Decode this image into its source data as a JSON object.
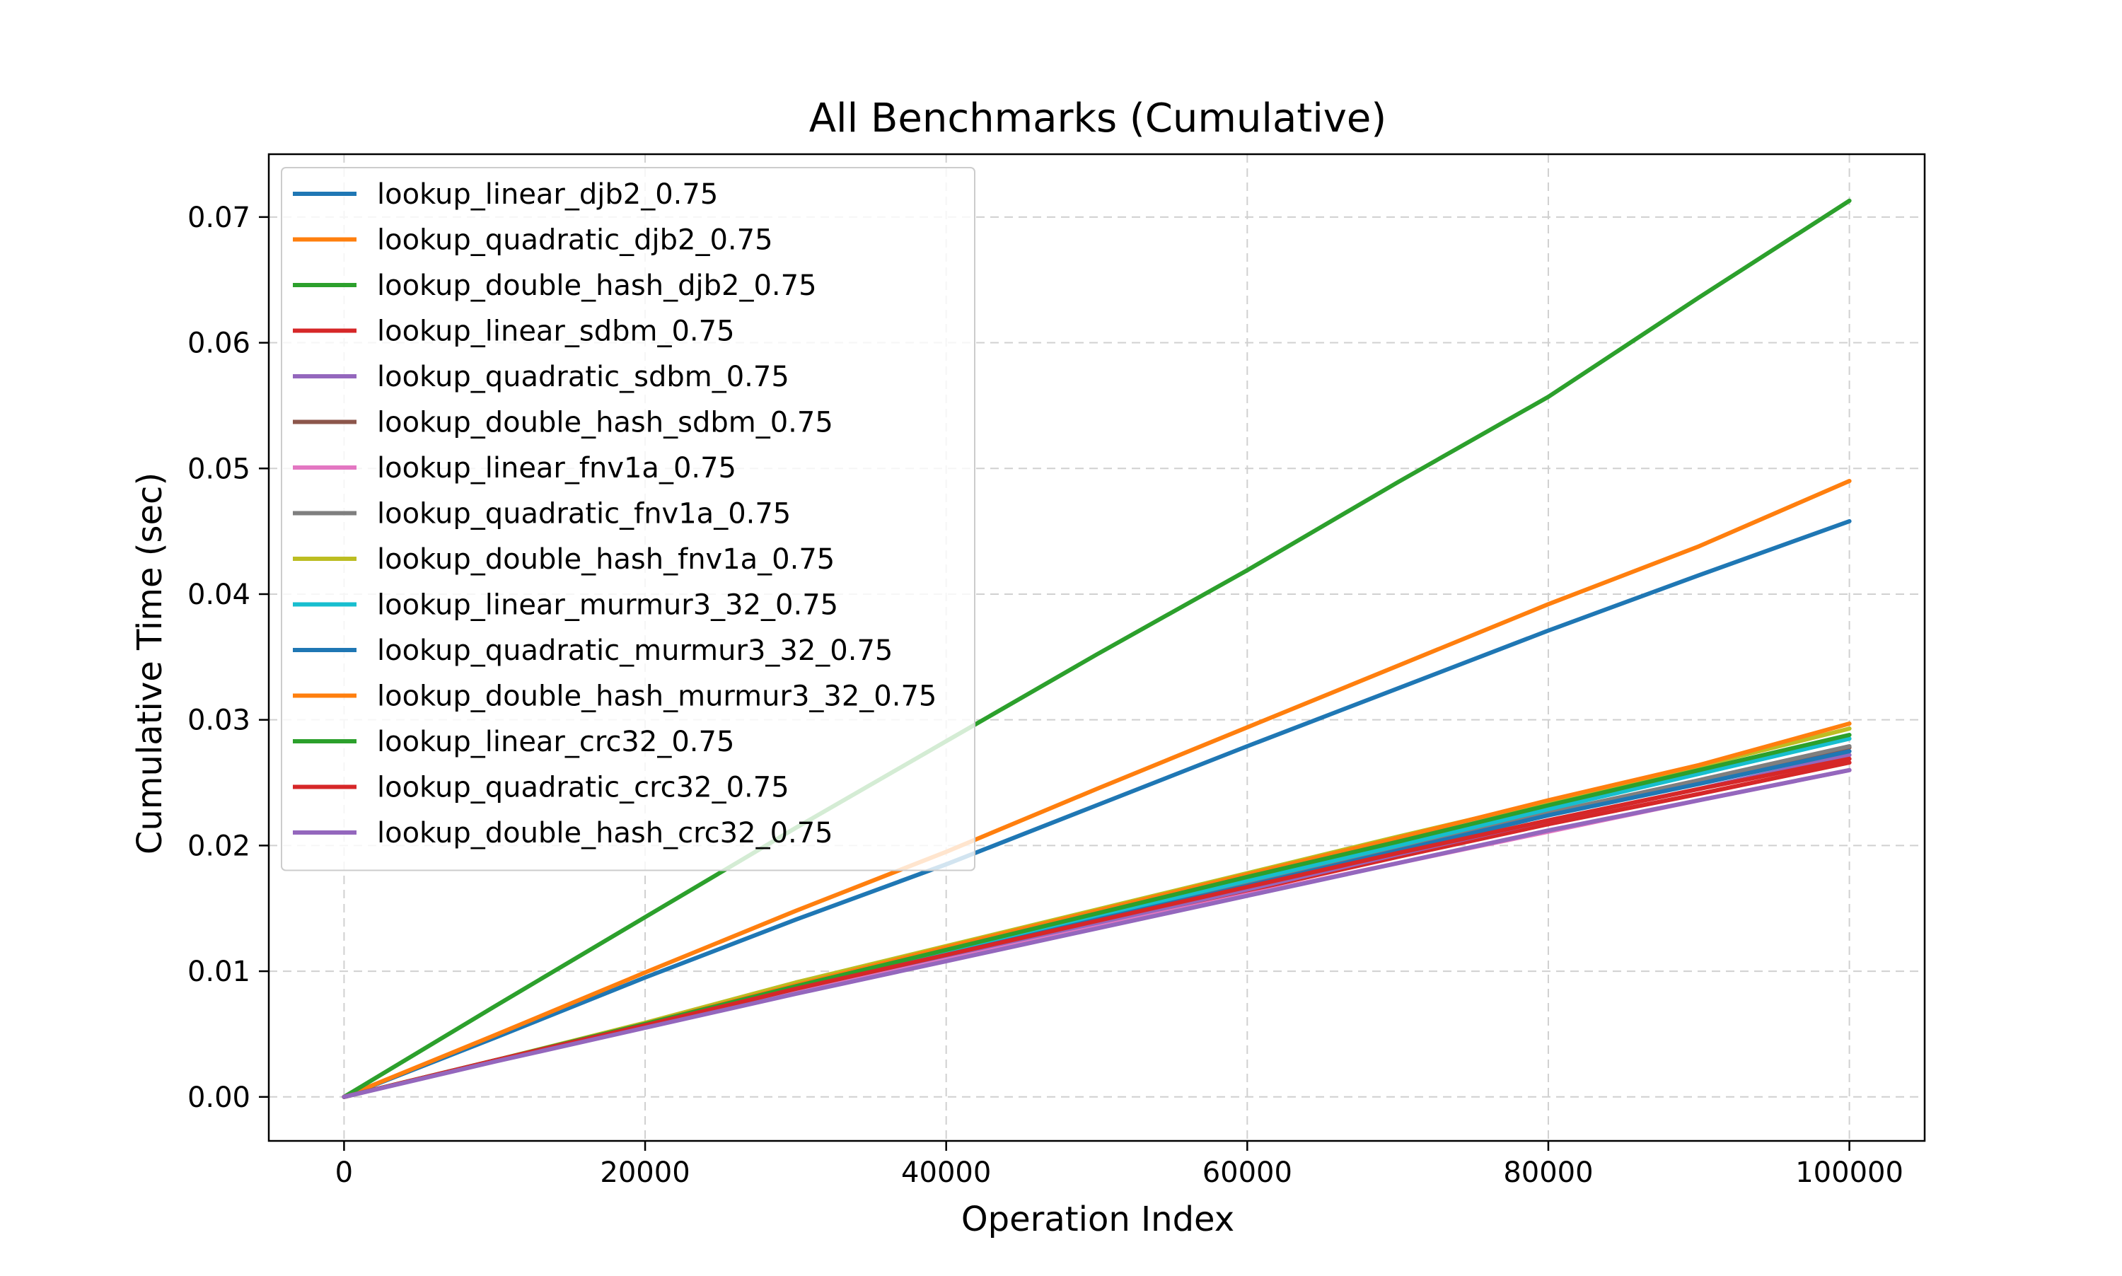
{
  "chart_data": {
    "type": "line",
    "title": "All Benchmarks (Cumulative)",
    "xlabel": "Operation Index",
    "ylabel": "Cumulative Time (sec)",
    "xlim": [
      -5000,
      105000
    ],
    "ylim": [
      -0.0035,
      0.075
    ],
    "xticks": [
      0,
      20000,
      40000,
      60000,
      80000,
      100000
    ],
    "xtick_labels": [
      "0",
      "20000",
      "40000",
      "60000",
      "80000",
      "100000"
    ],
    "yticks": [
      0.0,
      0.01,
      0.02,
      0.03,
      0.04,
      0.05,
      0.06,
      0.07
    ],
    "ytick_labels": [
      "0.00",
      "0.01",
      "0.02",
      "0.03",
      "0.04",
      "0.05",
      "0.06",
      "0.07"
    ],
    "grid": true,
    "legend_position": "top-left",
    "x": [
      0,
      10000,
      20000,
      30000,
      40000,
      50000,
      60000,
      70000,
      80000,
      90000,
      100000
    ],
    "series": [
      {
        "name": "lookup_linear_djb2_0.75",
        "color": "#1f77b4",
        "values": [
          0,
          0.0047,
          0.0095,
          0.0141,
          0.0185,
          0.0232,
          0.0279,
          0.0325,
          0.0371,
          0.0415,
          0.0458
        ]
      },
      {
        "name": "lookup_quadratic_djb2_0.75",
        "color": "#ff7f0e",
        "values": [
          0,
          0.0049,
          0.0099,
          0.0148,
          0.0195,
          0.0245,
          0.0294,
          0.0343,
          0.0392,
          0.0438,
          0.049
        ]
      },
      {
        "name": "lookup_double_hash_djb2_0.75",
        "color": "#2ca02c",
        "values": [
          0,
          0.0072,
          0.0143,
          0.0214,
          0.0283,
          0.0352,
          0.0419,
          0.0489,
          0.0557,
          0.0636,
          0.0713
        ]
      },
      {
        "name": "lookup_linear_sdbm_0.75",
        "color": "#d62728",
        "values": [
          0,
          0.0029,
          0.0057,
          0.0085,
          0.0112,
          0.0138,
          0.0164,
          0.0191,
          0.0217,
          0.0241,
          0.0266
        ]
      },
      {
        "name": "lookup_quadratic_sdbm_0.75",
        "color": "#9467bd",
        "values": [
          0,
          0.0029,
          0.0056,
          0.0084,
          0.0111,
          0.0138,
          0.0165,
          0.0193,
          0.022,
          0.0245,
          0.0272
        ]
      },
      {
        "name": "lookup_double_hash_sdbm_0.75",
        "color": "#8c564b",
        "values": [
          0,
          0.0029,
          0.0057,
          0.0087,
          0.0114,
          0.0142,
          0.0169,
          0.0197,
          0.0225,
          0.0251,
          0.0278
        ]
      },
      {
        "name": "lookup_linear_fnv1a_0.75",
        "color": "#e377c2",
        "values": [
          0,
          0.0029,
          0.0056,
          0.0083,
          0.0109,
          0.0135,
          0.0161,
          0.0186,
          0.0211,
          0.0236,
          0.026
        ]
      },
      {
        "name": "lookup_quadratic_fnv1a_0.75",
        "color": "#7f7f7f",
        "values": [
          0,
          0.0029,
          0.0057,
          0.0086,
          0.0114,
          0.0142,
          0.017,
          0.0198,
          0.0226,
          0.0252,
          0.0279
        ]
      },
      {
        "name": "lookup_double_hash_fnv1a_0.75",
        "color": "#bcbd22",
        "values": [
          0,
          0.0029,
          0.0059,
          0.0091,
          0.012,
          0.0149,
          0.0178,
          0.0207,
          0.0235,
          0.0263,
          0.0293
        ]
      },
      {
        "name": "lookup_linear_murmur3_32_0.75",
        "color": "#17becf",
        "values": [
          0,
          0.0029,
          0.0057,
          0.0087,
          0.0115,
          0.0144,
          0.0172,
          0.02,
          0.0229,
          0.0257,
          0.0285
        ]
      },
      {
        "name": "lookup_quadratic_murmur3_32_0.75",
        "color": "#1f77b4",
        "values": [
          0,
          0.0029,
          0.0057,
          0.0086,
          0.0113,
          0.0141,
          0.0168,
          0.0196,
          0.0224,
          0.0249,
          0.0275
        ]
      },
      {
        "name": "lookup_double_hash_murmur3_32_0.75",
        "color": "#ff7f0e",
        "values": [
          0,
          0.0029,
          0.0058,
          0.0089,
          0.0119,
          0.0148,
          0.0177,
          0.0206,
          0.0236,
          0.0264,
          0.0297
        ]
      },
      {
        "name": "lookup_linear_crc32_0.75",
        "color": "#2ca02c",
        "values": [
          0,
          0.0029,
          0.0058,
          0.0088,
          0.0117,
          0.0146,
          0.0175,
          0.0203,
          0.0232,
          0.026,
          0.0288
        ]
      },
      {
        "name": "lookup_quadratic_crc32_0.75",
        "color": "#d62728",
        "values": [
          0,
          0.0029,
          0.0057,
          0.0086,
          0.0113,
          0.014,
          0.0167,
          0.0194,
          0.022,
          0.0245,
          0.0269
        ]
      },
      {
        "name": "lookup_double_hash_crc32_0.75",
        "color": "#9467bd",
        "values": [
          0,
          0.0028,
          0.0055,
          0.0082,
          0.0108,
          0.0134,
          0.016,
          0.0186,
          0.0212,
          0.0236,
          0.026
        ]
      }
    ]
  }
}
